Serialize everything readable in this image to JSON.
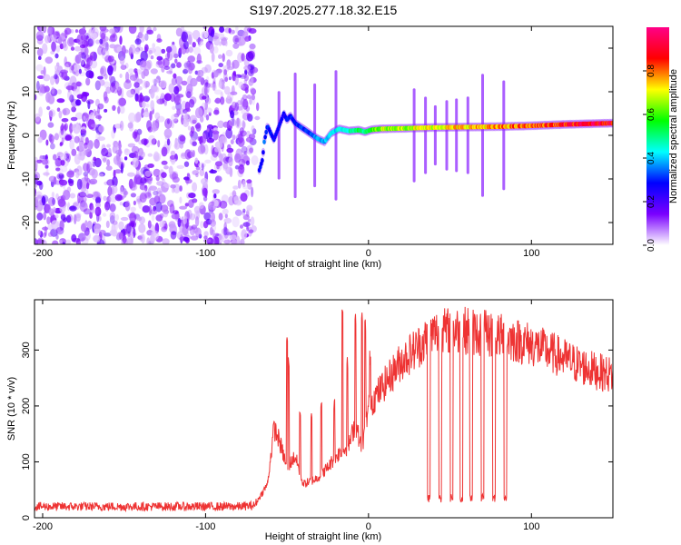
{
  "title": "S197.2025.277.18.32.E15",
  "chart_data": [
    {
      "type": "heatmap",
      "xlabel": "Height of straight line (km)",
      "ylabel": "Frequency (Hz)",
      "xlim": [
        -205,
        150
      ],
      "ylim": [
        -25,
        25
      ],
      "xticks": [
        -200,
        -100,
        0,
        100
      ],
      "xtick_labels": [
        "-200",
        "-100",
        "0",
        "100"
      ],
      "yticks": [
        -20,
        -10,
        0,
        10,
        20
      ],
      "ytick_labels": [
        "-20",
        "-10",
        "0",
        "10",
        "20"
      ],
      "colorbar": {
        "label": "Normalized spectral amplitude",
        "range": [
          0,
          1
        ],
        "ticks": [
          0.0,
          0.2,
          0.4,
          0.6,
          0.8
        ],
        "tick_labels": [
          "0.0",
          "0.2",
          "0.4",
          "0.6",
          "0.8"
        ],
        "colors": [
          "#ffffff",
          "#7a00ff",
          "#0000ff",
          "#00ffff",
          "#00ff00",
          "#ffff00",
          "#ff0000",
          "#ff0088"
        ]
      },
      "noise_region_x": [
        -205,
        -70
      ],
      "carrier_points": [
        {
          "x": -67,
          "f": -8.0,
          "a": 0.3
        },
        {
          "x": -65,
          "f": -5.5,
          "a": 0.3
        },
        {
          "x": -64,
          "f": -1.5,
          "a": 0.35
        },
        {
          "x": -62,
          "f": 2.2,
          "a": 0.3
        },
        {
          "x": -60,
          "f": 0.5,
          "a": 0.3
        },
        {
          "x": -58,
          "f": -1.0,
          "a": 0.3
        },
        {
          "x": -52,
          "f": 5.0,
          "a": 0.28
        },
        {
          "x": -50,
          "f": 3.5,
          "a": 0.3
        },
        {
          "x": -48,
          "f": 4.5,
          "a": 0.3
        },
        {
          "x": -45,
          "f": 2.8,
          "a": 0.32
        },
        {
          "x": -40,
          "f": 1.5,
          "a": 0.33
        },
        {
          "x": -35,
          "f": 0.2,
          "a": 0.35
        },
        {
          "x": -31,
          "f": -0.8,
          "a": 0.4
        },
        {
          "x": -27,
          "f": -1.5,
          "a": 0.4
        },
        {
          "x": -23,
          "f": 0.5,
          "a": 0.42
        },
        {
          "x": -18,
          "f": 1.5,
          "a": 0.45
        },
        {
          "x": -12,
          "f": 1.0,
          "a": 0.5
        },
        {
          "x": -6,
          "f": 1.2,
          "a": 0.55
        },
        {
          "x": -2,
          "f": 0.8,
          "a": 0.5
        },
        {
          "x": 2,
          "f": 1.3,
          "a": 0.6
        },
        {
          "x": 8,
          "f": 1.5,
          "a": 0.7
        },
        {
          "x": 20,
          "f": 1.6,
          "a": 0.7
        },
        {
          "x": 40,
          "f": 1.8,
          "a": 0.75
        },
        {
          "x": 60,
          "f": 1.9,
          "a": 0.78
        },
        {
          "x": 80,
          "f": 2.0,
          "a": 0.8
        },
        {
          "x": 100,
          "f": 2.2,
          "a": 0.85
        },
        {
          "x": 120,
          "f": 2.5,
          "a": 0.9
        },
        {
          "x": 140,
          "f": 2.7,
          "a": 0.95
        },
        {
          "x": 150,
          "f": 2.8,
          "a": 0.95
        }
      ],
      "vertical_streaks_x": [
        -55,
        -45,
        -33,
        -20,
        28,
        35,
        41,
        48,
        54,
        61,
        70,
        83
      ]
    },
    {
      "type": "line",
      "xlabel": "Height of straight line (km)",
      "ylabel": "SNR (10 * v/v)",
      "xlim": [
        -205,
        150
      ],
      "ylim": [
        0,
        390
      ],
      "xticks": [
        -200,
        -100,
        0,
        100
      ],
      "xtick_labels": [
        "-200",
        "-100",
        "0",
        "100"
      ],
      "yticks": [
        0,
        100,
        200,
        300
      ],
      "ytick_labels": [
        "0",
        "100",
        "200",
        "300"
      ],
      "series": [
        {
          "name": "SNR",
          "color": "#ee3333",
          "envelope": [
            {
              "x": -205,
              "y": 20
            },
            {
              "x": -80,
              "y": 20
            },
            {
              "x": -70,
              "y": 22
            },
            {
              "x": -62,
              "y": 60
            },
            {
              "x": -58,
              "y": 160
            },
            {
              "x": -55,
              "y": 140
            },
            {
              "x": -50,
              "y": 90
            },
            {
              "x": -45,
              "y": 110
            },
            {
              "x": -40,
              "y": 60
            },
            {
              "x": -32,
              "y": 70
            },
            {
              "x": -25,
              "y": 90
            },
            {
              "x": -20,
              "y": 110
            },
            {
              "x": -12,
              "y": 130
            },
            {
              "x": -8,
              "y": 170
            },
            {
              "x": -4,
              "y": 120
            },
            {
              "x": 0,
              "y": 200
            },
            {
              "x": 10,
              "y": 240
            },
            {
              "x": 20,
              "y": 280
            },
            {
              "x": 30,
              "y": 305
            },
            {
              "x": 40,
              "y": 330
            },
            {
              "x": 50,
              "y": 335
            },
            {
              "x": 60,
              "y": 335
            },
            {
              "x": 70,
              "y": 330
            },
            {
              "x": 80,
              "y": 325
            },
            {
              "x": 90,
              "y": 318
            },
            {
              "x": 100,
              "y": 310
            },
            {
              "x": 110,
              "y": 298
            },
            {
              "x": 120,
              "y": 285
            },
            {
              "x": 130,
              "y": 272
            },
            {
              "x": 140,
              "y": 262
            },
            {
              "x": 150,
              "y": 255
            }
          ],
          "spikes": [
            {
              "x": -50,
              "y": 330
            },
            {
              "x": -49,
              "y": 290
            },
            {
              "x": -42,
              "y": 200
            },
            {
              "x": -35,
              "y": 190
            },
            {
              "x": -29,
              "y": 210
            },
            {
              "x": -21,
              "y": 215
            },
            {
              "x": -16,
              "y": 385
            },
            {
              "x": -13,
              "y": 290
            },
            {
              "x": -8,
              "y": 380
            },
            {
              "x": -4,
              "y": 370
            },
            {
              "x": -2,
              "y": 360
            },
            {
              "x": 1,
              "y": 300
            }
          ],
          "dropouts_x": [
            37,
            44,
            51,
            57,
            63,
            70,
            77,
            84
          ],
          "dropout_level": 35
        }
      ]
    }
  ]
}
